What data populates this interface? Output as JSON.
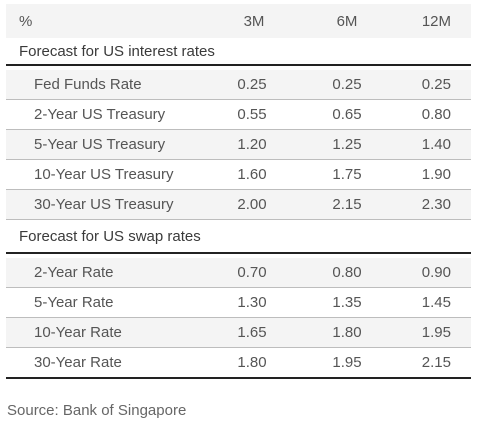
{
  "header": {
    "unit": "%",
    "columns": [
      "3M",
      "6M",
      "12M"
    ]
  },
  "sections": [
    {
      "title": "Forecast for US interest rates",
      "rows": [
        {
          "label": "Fed Funds Rate",
          "values": [
            "0.25",
            "0.25",
            "0.25"
          ]
        },
        {
          "label": "2-Year US Treasury",
          "values": [
            "0.55",
            "0.65",
            "0.80"
          ]
        },
        {
          "label": "5-Year US Treasury",
          "values": [
            "1.20",
            "1.25",
            "1.40"
          ]
        },
        {
          "label": "10-Year US Treasury",
          "values": [
            "1.60",
            "1.75",
            "1.90"
          ]
        },
        {
          "label": "30-Year US Treasury",
          "values": [
            "2.00",
            "2.15",
            "2.30"
          ]
        }
      ]
    },
    {
      "title": "Forecast for US swap rates",
      "rows": [
        {
          "label": "2-Year Rate",
          "values": [
            "0.70",
            "0.80",
            "0.90"
          ]
        },
        {
          "label": "5-Year Rate",
          "values": [
            "1.30",
            "1.35",
            "1.45"
          ]
        },
        {
          "label": "10-Year Rate",
          "values": [
            "1.65",
            "1.80",
            "1.95"
          ]
        },
        {
          "label": "30-Year Rate",
          "values": [
            "1.80",
            "1.95",
            "2.15"
          ]
        }
      ]
    }
  ],
  "source": "Source: Bank of Singapore"
}
